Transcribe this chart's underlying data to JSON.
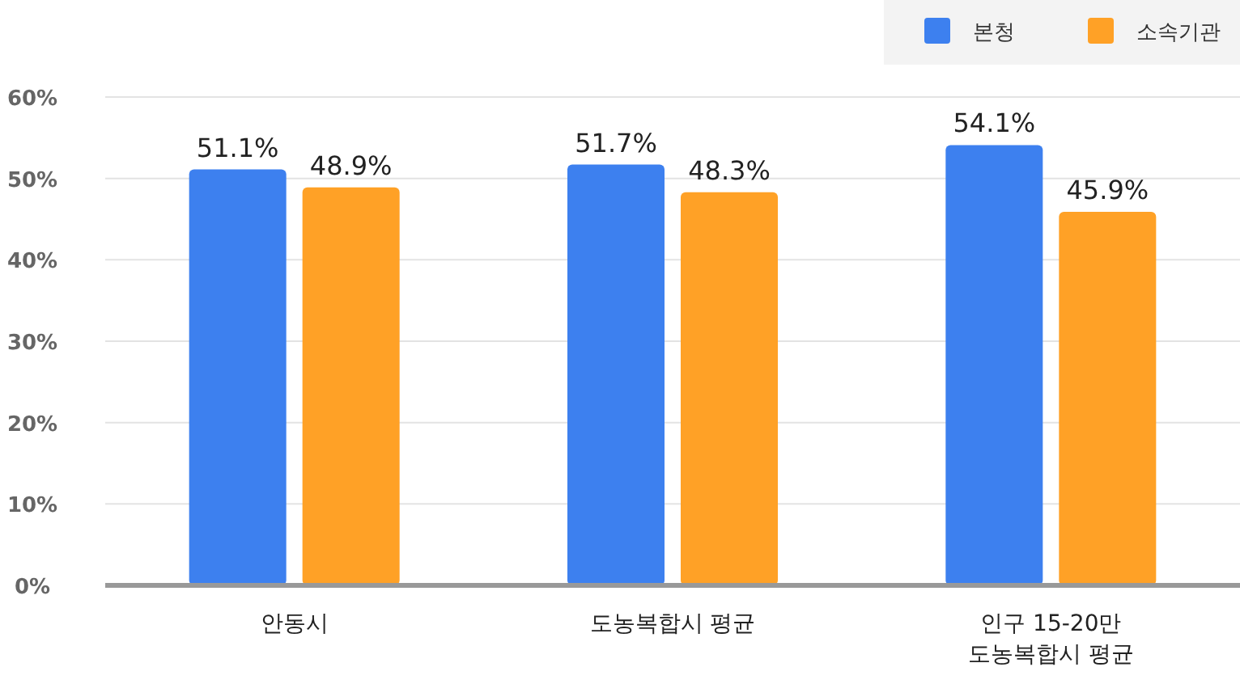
{
  "chart_data": {
    "type": "bar",
    "categories": [
      "안동시",
      "도농복합시 평균",
      "인구 15-20만\n도농복합시 평균"
    ],
    "series": [
      {
        "name": "본청",
        "color": "#3d80ef",
        "values": [
          51.1,
          51.7,
          54.1
        ],
        "value_labels": [
          "51.1%",
          "51.7%",
          "54.1%"
        ]
      },
      {
        "name": "소속기관",
        "color": "#ffa126",
        "values": [
          48.9,
          48.3,
          45.9
        ],
        "value_labels": [
          "48.9%",
          "48.3%",
          "45.9%"
        ]
      }
    ],
    "ylim": [
      0,
      60
    ],
    "yticks": [
      {
        "value": 0,
        "label": "0%"
      },
      {
        "value": 10,
        "label": "10%"
      },
      {
        "value": 20,
        "label": "20%"
      },
      {
        "value": 30,
        "label": "30%"
      },
      {
        "value": 40,
        "label": "40%"
      },
      {
        "value": 50,
        "label": "50%"
      },
      {
        "value": 60,
        "label": "60%"
      }
    ],
    "grid": "y",
    "legend": "top right"
  }
}
